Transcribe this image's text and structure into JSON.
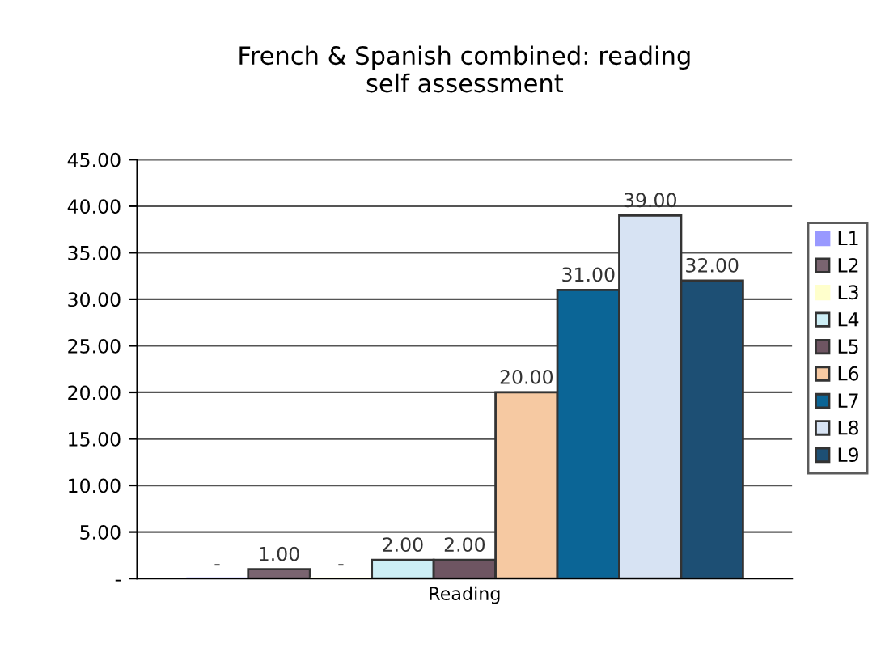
{
  "chart_data": {
    "type": "bar",
    "title": "French & Spanish combined: reading\nself assessment",
    "categories": [
      "Reading"
    ],
    "series": [
      {
        "name": "L1",
        "color": "#9999ff",
        "values": [
          0
        ],
        "value_labels": [
          "-"
        ]
      },
      {
        "name": "L2",
        "color": "#7a6470",
        "values": [
          1
        ],
        "value_labels": [
          "1.00"
        ]
      },
      {
        "name": "L3",
        "color": "#ffffcc",
        "values": [
          0
        ],
        "value_labels": [
          "-"
        ]
      },
      {
        "name": "L4",
        "color": "#cdeef5",
        "values": [
          2
        ],
        "value_labels": [
          "2.00"
        ]
      },
      {
        "name": "L5",
        "color": "#6e5562",
        "values": [
          2
        ],
        "value_labels": [
          "2.00"
        ]
      },
      {
        "name": "L6",
        "color": "#f6c9a2",
        "values": [
          20
        ],
        "value_labels": [
          "20.00"
        ]
      },
      {
        "name": "L7",
        "color": "#0b6596",
        "values": [
          31
        ],
        "value_labels": [
          "31.00"
        ]
      },
      {
        "name": "L8",
        "color": "#d7e3f3",
        "values": [
          39
        ],
        "value_labels": [
          "39.00"
        ]
      },
      {
        "name": "L9",
        "color": "#1d4f74",
        "values": [
          32
        ],
        "value_labels": [
          "32.00"
        ]
      }
    ],
    "ylim": [
      0,
      45
    ],
    "yticks": [
      {
        "value": 0,
        "label": "-"
      },
      {
        "value": 5,
        "label": "5.00"
      },
      {
        "value": 10,
        "label": "10.00"
      },
      {
        "value": 15,
        "label": "15.00"
      },
      {
        "value": 20,
        "label": "20.00"
      },
      {
        "value": 25,
        "label": "25.00"
      },
      {
        "value": 30,
        "label": "30.00"
      },
      {
        "value": 35,
        "label": "35.00"
      },
      {
        "value": 40,
        "label": "40.00"
      },
      {
        "value": 45,
        "label": "45.00"
      }
    ],
    "grid": "y",
    "legend": "right"
  }
}
